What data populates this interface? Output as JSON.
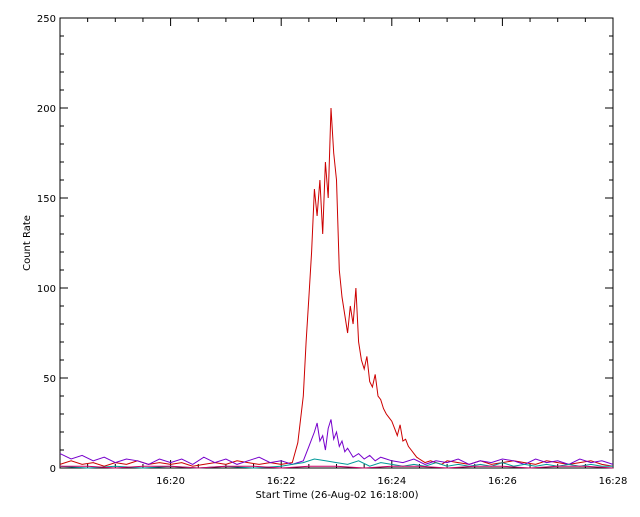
{
  "chart_data": {
    "type": "line",
    "title": "",
    "xlabel": "Start Time (26-Aug-02 16:18:00)",
    "ylabel": "Count Rate",
    "xlim_minutes": [
      0,
      10
    ],
    "ylim": [
      0,
      250
    ],
    "x_ticks": [
      {
        "minute": 2,
        "label": "16:20"
      },
      {
        "minute": 4,
        "label": "16:22"
      },
      {
        "minute": 6,
        "label": "16:24"
      },
      {
        "minute": 8,
        "label": "16:26"
      },
      {
        "minute": 10,
        "label": "16:28"
      }
    ],
    "y_ticks": [
      0,
      50,
      100,
      150,
      200,
      250
    ],
    "grid": false,
    "colors": {
      "red": "#cc0000",
      "purple": "#7700cc",
      "teal": "#009999",
      "magenta": "#cc0066",
      "axis": "#000000"
    },
    "series": [
      {
        "color": "#cc0000",
        "x": [
          0.0,
          0.2,
          0.4,
          0.6,
          0.8,
          1.0,
          1.2,
          1.4,
          1.6,
          1.8,
          2.0,
          2.2,
          2.4,
          2.6,
          2.8,
          3.0,
          3.2,
          3.4,
          3.6,
          3.8,
          4.0,
          4.2,
          4.3,
          4.4,
          4.45,
          4.5,
          4.55,
          4.6,
          4.65,
          4.7,
          4.75,
          4.8,
          4.85,
          4.9,
          4.95,
          5.0,
          5.05,
          5.1,
          5.15,
          5.2,
          5.25,
          5.3,
          5.35,
          5.4,
          5.45,
          5.5,
          5.55,
          5.6,
          5.65,
          5.7,
          5.75,
          5.8,
          5.85,
          5.9,
          5.95,
          6.0,
          6.05,
          6.1,
          6.15,
          6.2,
          6.25,
          6.3,
          6.35,
          6.4,
          6.45,
          6.5,
          6.55,
          6.6,
          6.7,
          6.8,
          6.9,
          7.0,
          7.2,
          7.4,
          7.6,
          7.8,
          8.0,
          8.2,
          8.4,
          8.6,
          8.8,
          9.0,
          9.2,
          9.4,
          9.6,
          9.8,
          10.0
        ],
        "y": [
          2,
          4,
          2,
          3,
          1,
          3,
          2,
          4,
          2,
          3,
          2,
          3,
          1,
          2,
          3,
          2,
          4,
          3,
          2,
          3,
          2,
          3,
          14,
          40,
          70,
          95,
          120,
          155,
          140,
          160,
          130,
          170,
          150,
          200,
          175,
          160,
          110,
          95,
          85,
          75,
          90,
          80,
          100,
          70,
          60,
          55,
          62,
          48,
          45,
          52,
          40,
          38,
          33,
          30,
          28,
          26,
          22,
          18,
          24,
          15,
          16,
          12,
          10,
          8,
          6,
          5,
          4,
          3,
          4,
          3,
          2,
          4,
          3,
          2,
          4,
          2,
          3,
          4,
          3,
          2,
          4,
          3,
          2,
          3,
          4,
          2,
          1
        ]
      },
      {
        "color": "#7700cc",
        "x": [
          0.0,
          0.2,
          0.4,
          0.6,
          0.8,
          1.0,
          1.2,
          1.4,
          1.6,
          1.8,
          2.0,
          2.2,
          2.4,
          2.6,
          2.8,
          3.0,
          3.2,
          3.4,
          3.6,
          3.8,
          4.0,
          4.2,
          4.4,
          4.5,
          4.6,
          4.65,
          4.7,
          4.75,
          4.8,
          4.85,
          4.9,
          4.95,
          5.0,
          5.05,
          5.1,
          5.15,
          5.2,
          5.3,
          5.4,
          5.5,
          5.6,
          5.7,
          5.8,
          5.9,
          6.0,
          6.2,
          6.4,
          6.6,
          6.8,
          7.0,
          7.2,
          7.4,
          7.6,
          7.8,
          8.0,
          8.2,
          8.4,
          8.6,
          8.8,
          9.0,
          9.2,
          9.4,
          9.6,
          9.8,
          10.0
        ],
        "y": [
          8,
          5,
          7,
          4,
          6,
          3,
          5,
          4,
          2,
          5,
          3,
          5,
          2,
          6,
          3,
          5,
          2,
          4,
          6,
          3,
          4,
          2,
          4,
          12,
          20,
          25,
          15,
          18,
          10,
          22,
          27,
          16,
          20,
          12,
          15,
          9,
          11,
          6,
          8,
          5,
          7,
          4,
          6,
          5,
          4,
          3,
          5,
          2,
          4,
          3,
          5,
          2,
          4,
          3,
          5,
          4,
          2,
          5,
          3,
          4,
          2,
          5,
          3,
          4,
          2
        ]
      },
      {
        "color": "#009999",
        "x": [
          0.0,
          0.5,
          1.0,
          1.5,
          2.0,
          2.5,
          3.0,
          3.5,
          4.0,
          4.2,
          4.4,
          4.6,
          4.8,
          5.0,
          5.2,
          5.4,
          5.6,
          5.8,
          6.0,
          6.2,
          6.4,
          6.6,
          6.8,
          7.0,
          7.2,
          7.4,
          7.6,
          7.8,
          8.0,
          8.2,
          8.4,
          8.6,
          8.8,
          9.0,
          9.2,
          9.4,
          9.6,
          9.8,
          10.0
        ],
        "y": [
          1,
          0,
          1,
          0,
          1,
          0,
          1,
          0,
          1,
          2,
          3,
          5,
          4,
          3,
          2,
          4,
          1,
          3,
          2,
          1,
          2,
          1,
          3,
          1,
          2,
          1,
          2,
          1,
          3,
          1,
          2,
          1,
          2,
          1,
          2,
          1,
          2,
          1,
          1
        ]
      },
      {
        "color": "#cc0066",
        "x": [
          0.0,
          0.5,
          1.0,
          1.5,
          2.0,
          2.5,
          3.0,
          3.5,
          4.0,
          4.5,
          5.0,
          5.5,
          6.0,
          6.5,
          7.0,
          7.5,
          8.0,
          8.5,
          9.0,
          9.5,
          10.0
        ],
        "y": [
          1,
          1,
          0,
          1,
          1,
          0,
          1,
          1,
          0,
          1,
          1,
          0,
          1,
          1,
          0,
          1,
          1,
          0,
          1,
          1,
          0
        ]
      }
    ]
  }
}
